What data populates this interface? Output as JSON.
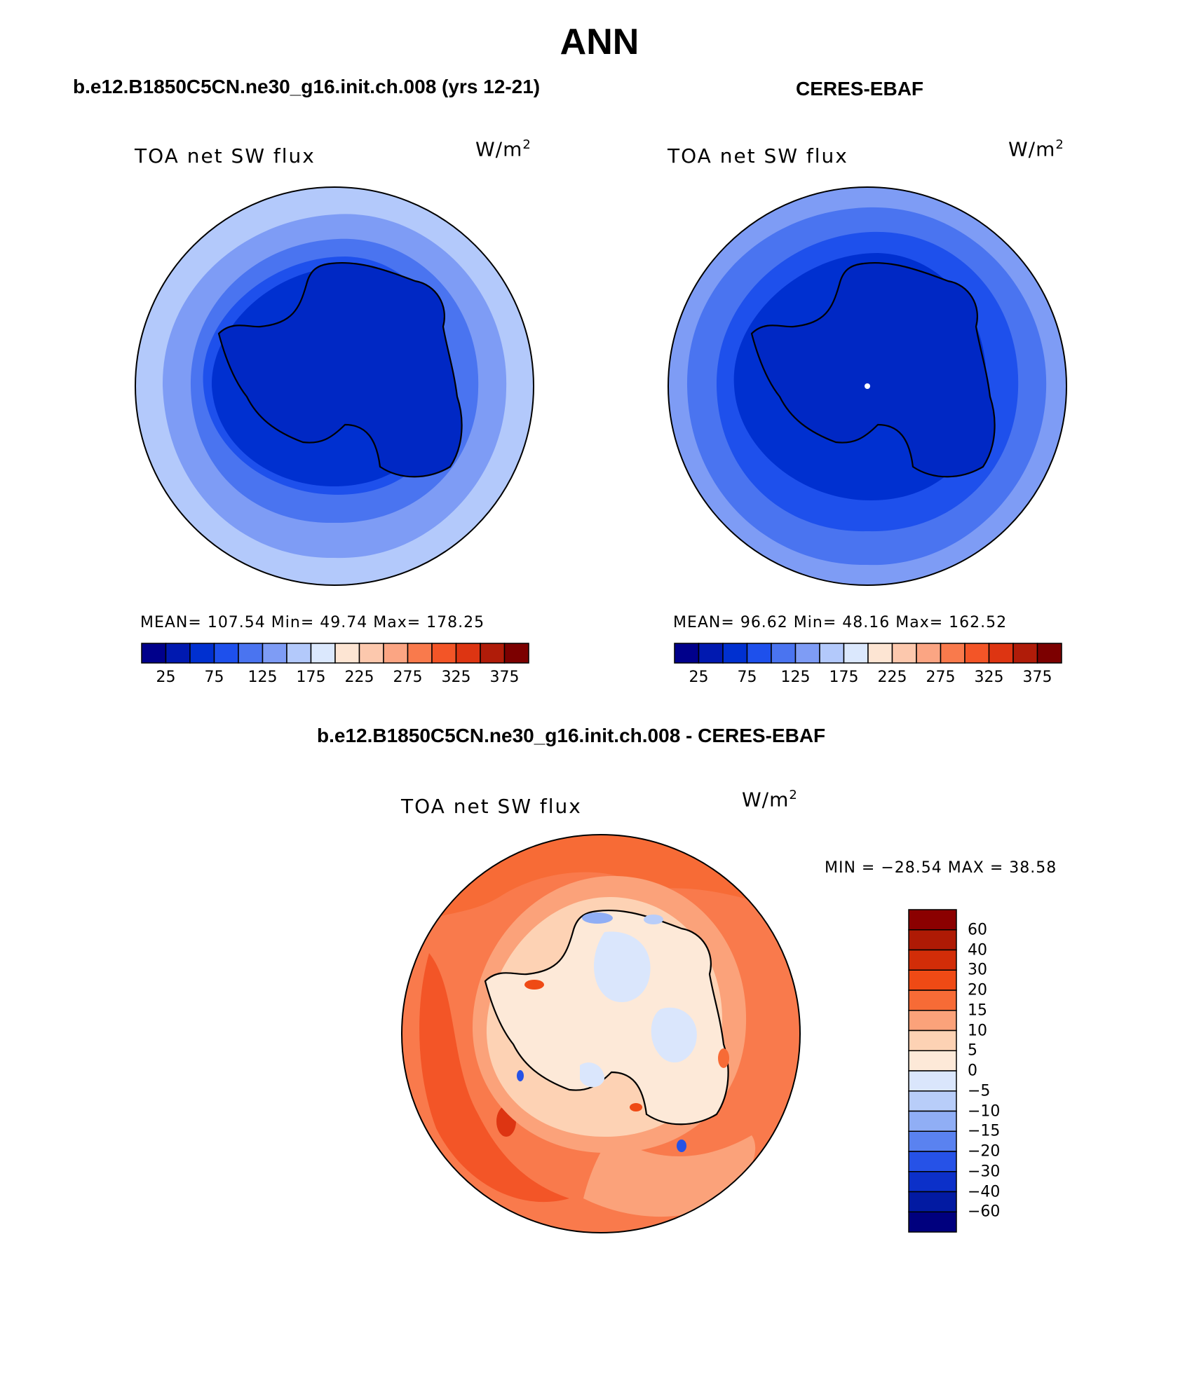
{
  "title": "ANN",
  "panels": [
    {
      "subtitle": "b.e12.B1850C5CN.ne30_g16.init.ch.008 (yrs 12-21)",
      "label": "TOA net SW flux",
      "units_base": "W/m",
      "units_sup": "2",
      "stats": "MEAN= 107.54   Min=   49.74   Max= 178.25"
    },
    {
      "subtitle": "CERES-EBAF",
      "label": "TOA net SW flux",
      "units_base": "W/m",
      "units_sup": "2",
      "stats": "MEAN=   96.62   Min=   48.16   Max= 162.52"
    },
    {
      "subtitle": "b.e12.B1850C5CN.ne30_g16.init.ch.008 - CERES-EBAF",
      "label": "TOA net SW flux",
      "units_base": "W/m",
      "units_sup": "2",
      "stats": "MIN = −28.54  MAX =   38.58"
    }
  ],
  "colorbar_horizontal": {
    "colors": [
      "#00008b",
      "#0019b0",
      "#0030d0",
      "#1e50ec",
      "#4a74f0",
      "#7e9cf5",
      "#b3c9fb",
      "#dbe8fd",
      "#fde5d3",
      "#fcc8ad",
      "#fba583",
      "#f97a4c",
      "#f35527",
      "#dd3512",
      "#b01c09",
      "#7c0000"
    ],
    "tick_labels": [
      "25",
      "75",
      "125",
      "175",
      "225",
      "275",
      "325",
      "375"
    ]
  },
  "colorbar_vertical": {
    "colors": [
      "#8b0000",
      "#ae1a05",
      "#d22d08",
      "#ef4a15",
      "#f76b36",
      "#fba27a",
      "#fdd2b4",
      "#fde9d8",
      "#dae6fc",
      "#b8cdf9",
      "#90aef5",
      "#5a82f0",
      "#2652e7",
      "#0c30c9",
      "#021aa2",
      "#00007e"
    ],
    "tick_labels": [
      "60",
      "40",
      "30",
      "20",
      "15",
      "10",
      "5",
      "0",
      "−5",
      "−10",
      "−15",
      "−20",
      "−30",
      "−40",
      "−60"
    ]
  }
}
